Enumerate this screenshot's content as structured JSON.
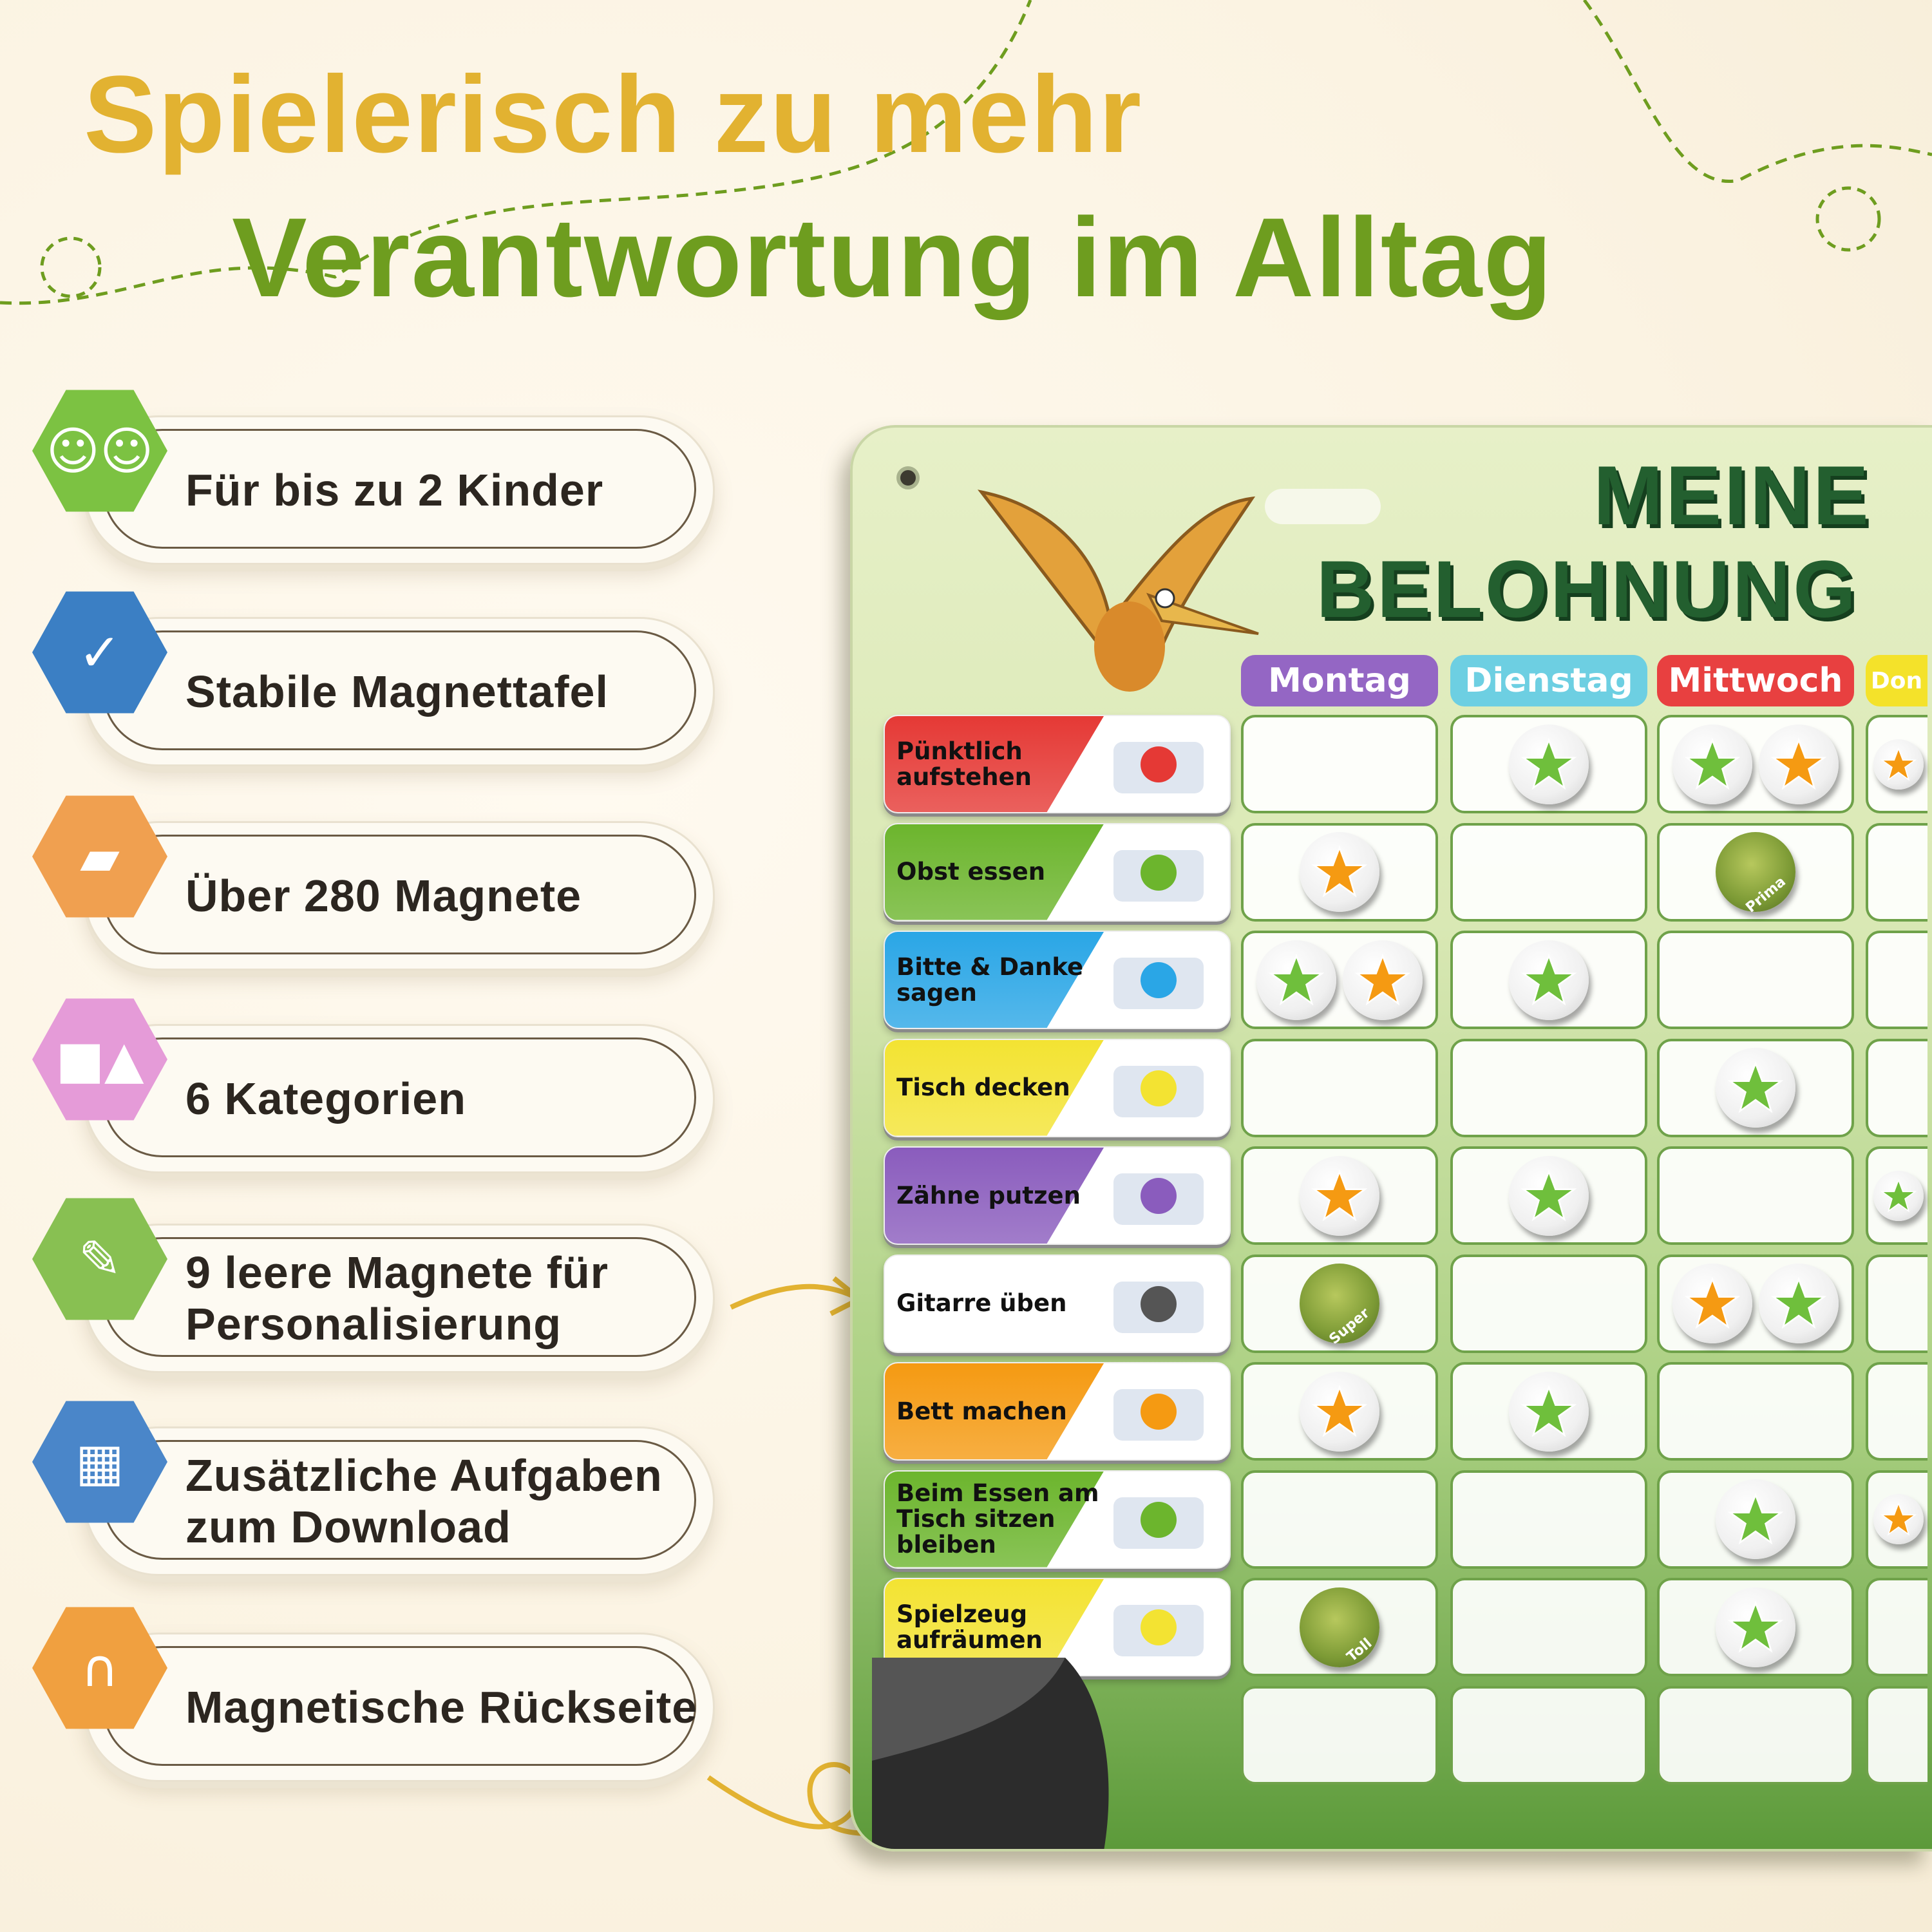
{
  "headline": {
    "line1": "Spielerisch zu mehr",
    "line2": "Verantwortung im Alltag"
  },
  "colors": {
    "headline1": "#e2b231",
    "headline2": "#6e9d1f",
    "board_title": "#235f2f"
  },
  "features": [
    {
      "text": "Für bis zu 2 Kinder",
      "icon": "children-faces-icon",
      "badge_color": "#7cc242"
    },
    {
      "text": "Stabile Magnettafel",
      "icon": "checkmark-seal-icon",
      "badge_color": "#3b7fc4"
    },
    {
      "text": "Über 280 Magnete",
      "icon": "stacked-magnets-icon",
      "badge_color": "#f0a050"
    },
    {
      "text": "6 Kategorien",
      "icon": "shapes-icon",
      "badge_color": "#e59bd8"
    },
    {
      "text": "9 leere Magnete für\nPersonalisierung",
      "icon": "pencil-icon",
      "badge_color": "#88c052"
    },
    {
      "text": "Zusätzliche Aufgaben\nzum Download",
      "icon": "qr-code-icon",
      "badge_color": "#4a86c9"
    },
    {
      "text": "Magnetische Rückseite",
      "icon": "horseshoe-magnet-icon",
      "badge_color": "#f0a040"
    }
  ],
  "board": {
    "title_line1": "MEINE",
    "title_line2": "BELOHNUNG",
    "days": [
      {
        "label": "Montag",
        "color": "#9466c4"
      },
      {
        "label": "Dienstag",
        "color": "#6dcfe2"
      },
      {
        "label": "Mittwoch",
        "color": "#e84040"
      },
      {
        "label": "Don",
        "color": "#f4e22a"
      }
    ],
    "tasks": [
      {
        "label": "Pünktlich aufstehen",
        "color": "#e53935",
        "picture": "waking-up-icon",
        "magnets": [
          [],
          [
            "green-star"
          ],
          [
            "green-star",
            "orange-star"
          ],
          [
            "orange-star"
          ]
        ]
      },
      {
        "label": "Obst essen",
        "color": "#6cb52d",
        "picture": "fruit-icon",
        "magnets": [
          [
            "orange-star"
          ],
          [],
          [
            "Prima"
          ],
          []
        ]
      },
      {
        "label": "Bitte & Danke sagen",
        "color": "#2aa6e6",
        "picture": "kids-talking-icon",
        "magnets": [
          [
            "green-star",
            "orange-star"
          ],
          [
            "green-star"
          ],
          [],
          []
        ]
      },
      {
        "label": "Tisch decken",
        "color": "#f3e332",
        "picture": "place-setting-icon",
        "magnets": [
          [],
          [],
          [
            "green-star"
          ],
          []
        ]
      },
      {
        "label": "Zähne putzen",
        "color": "#8a5cbd",
        "picture": "toothbrush-icon",
        "magnets": [
          [
            "orange-star"
          ],
          [
            "green-star"
          ],
          [],
          [
            "green-star"
          ]
        ]
      },
      {
        "label": "Gitarre üben",
        "color": "#ffffff",
        "picture": "guitar-icon",
        "magnets": [
          [
            "Super"
          ],
          [],
          [
            "orange-star",
            "green-star"
          ],
          []
        ]
      },
      {
        "label": "Bett machen",
        "color": "#f59a12",
        "picture": "making-bed-icon",
        "magnets": [
          [
            "orange-star"
          ],
          [
            "green-star"
          ],
          [],
          []
        ]
      },
      {
        "label": "Beim Essen am Tisch sitzen bleiben",
        "color": "#6cb52d",
        "picture": "kids-at-table-icon",
        "magnets": [
          [],
          [],
          [
            "green-star"
          ],
          [
            "orange-star"
          ]
        ]
      },
      {
        "label": "Spielzeug aufräumen",
        "color": "#f3e332",
        "picture": "toys-icon",
        "magnets": [
          [
            "Toll"
          ],
          [],
          [
            "green-star"
          ],
          []
        ]
      }
    ]
  }
}
